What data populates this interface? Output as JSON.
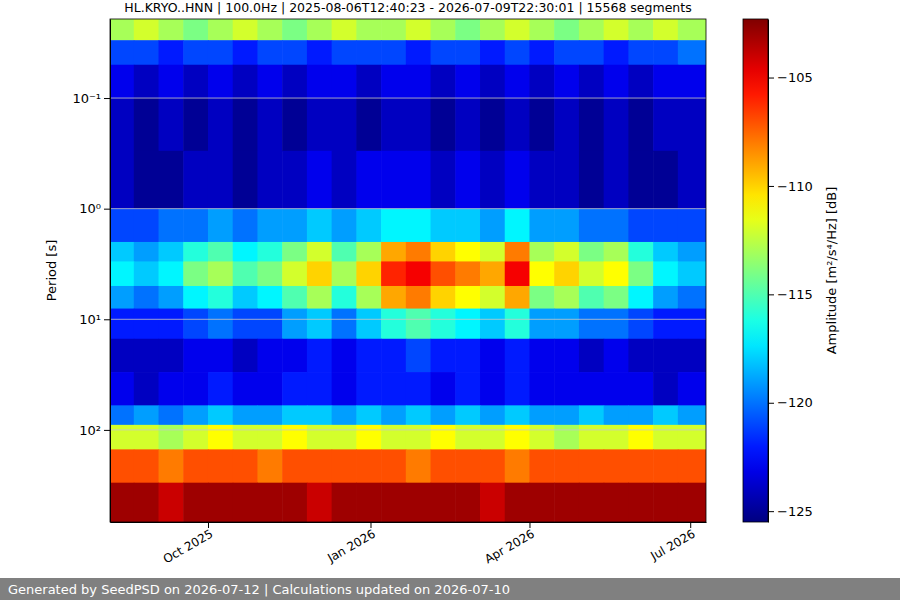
{
  "chart_data": {
    "type": "heatmap",
    "title": "HL.KRYO..HNN | 100.0Hz | 2025-08-06T12:40:23 - 2026-07-09T22:30:01 | 15568 segments",
    "y_label": "Period [s]",
    "caption": "Generated by SeedPSD on 2026-07-12 | Calculations updated on 2026-07-10",
    "log": "y",
    "grid": true,
    "xlim": [
      "2025-08-06T12:40:23",
      "2026-07-09T22:30:01"
    ],
    "xticks": [
      {
        "value": "2025-10-01",
        "label": "Oct 2025"
      },
      {
        "value": "2026-01-01",
        "label": "Jan 2026"
      },
      {
        "value": "2026-04-01",
        "label": "Apr 2026"
      },
      {
        "value": "2026-07-01",
        "label": "Jul 2026"
      }
    ],
    "ylim": [
      0.0193,
      680
    ],
    "yticks": [
      {
        "value": 0.1,
        "label": "10⁻¹"
      },
      {
        "value": 1,
        "label": "10⁰"
      },
      {
        "value": 10,
        "label": "10¹"
      },
      {
        "value": 100,
        "label": "10²"
      }
    ],
    "x_edges": [
      "2025-08-06T12:40:23",
      "2025-08-20",
      "2025-09-03",
      "2025-09-17",
      "2025-10-01",
      "2025-10-15",
      "2025-10-29",
      "2025-11-12",
      "2025-11-26",
      "2025-12-10",
      "2025-12-24",
      "2026-01-07",
      "2026-01-21",
      "2026-02-04",
      "2026-02-18",
      "2026-03-04",
      "2026-03-18",
      "2026-04-01",
      "2026-04-15",
      "2026-04-29",
      "2026-05-13",
      "2026-05-27",
      "2026-06-10",
      "2026-06-24",
      "2026-07-09T22:30:01"
    ],
    "y_edges": [
      0.0193,
      0.03,
      0.05,
      0.1,
      0.3,
      1,
      2,
      3,
      5,
      8,
      15,
      30,
      60,
      90,
      150,
      300,
      680
    ],
    "values": [
      [
        -113,
        -112,
        -113,
        -114,
        -113,
        -112,
        -113,
        -114,
        -113,
        -112,
        -113,
        -113,
        -112,
        -113,
        -114,
        -113,
        -112,
        -113,
        -114,
        -113,
        -112,
        -113,
        -112,
        -113
      ],
      [
        -121,
        -121,
        -122,
        -121,
        -121,
        -122,
        -121,
        -121,
        -122,
        -121,
        -121,
        -121,
        -122,
        -121,
        -121,
        -122,
        -121,
        -122,
        -121,
        -121,
        -122,
        -121,
        -121,
        -120
      ],
      [
        -123,
        -124,
        -123,
        -124,
        -123,
        -124,
        -123,
        -124,
        -123,
        -123,
        -124,
        -123,
        -123,
        -124,
        -123,
        -124,
        -123,
        -124,
        -123,
        -124,
        -123,
        -124,
        -123,
        -123
      ],
      [
        -124,
        -125,
        -124,
        -125,
        -124,
        -125,
        -124,
        -125,
        -124,
        -124,
        -125,
        -124,
        -124,
        -125,
        -124,
        -125,
        -124,
        -125,
        -124,
        -125,
        -124,
        -125,
        -124,
        -124
      ],
      [
        -124,
        -125,
        -125,
        -124,
        -124,
        -125,
        -124,
        -124,
        -123,
        -124,
        -123,
        -123,
        -123,
        -124,
        -123,
        -124,
        -123,
        -124,
        -124,
        -125,
        -124,
        -125,
        -125,
        -124
      ],
      [
        -121,
        -121,
        -120,
        -120,
        -119,
        -120,
        -119,
        -119,
        -118,
        -119,
        -118,
        -117,
        -117,
        -118,
        -118,
        -119,
        -117,
        -119,
        -119,
        -120,
        -120,
        -121,
        -121,
        -121
      ],
      [
        -118,
        -119,
        -118,
        -116,
        -115,
        -117,
        -116,
        -114,
        -112,
        -115,
        -113,
        -109,
        -108,
        -110,
        -111,
        -112,
        -108,
        -113,
        -112,
        -114,
        -113,
        -116,
        -118,
        -119
      ],
      [
        -117,
        -118,
        -117,
        -114,
        -113,
        -115,
        -114,
        -112,
        -110,
        -113,
        -110,
        -106,
        -105,
        -107,
        -108,
        -109,
        -105,
        -111,
        -110,
        -112,
        -111,
        -114,
        -117,
        -118
      ],
      [
        -119,
        -120,
        -119,
        -117,
        -116,
        -118,
        -117,
        -115,
        -113,
        -116,
        -113,
        -109,
        -108,
        -110,
        -111,
        -112,
        -109,
        -114,
        -113,
        -115,
        -114,
        -117,
        -119,
        -120
      ],
      [
        -122,
        -122,
        -122,
        -121,
        -120,
        -121,
        -121,
        -119,
        -118,
        -120,
        -118,
        -116,
        -115,
        -116,
        -117,
        -118,
        -116,
        -119,
        -119,
        -120,
        -120,
        -121,
        -122,
        -122
      ],
      [
        -124,
        -124,
        -124,
        -123,
        -123,
        -124,
        -123,
        -123,
        -122,
        -123,
        -122,
        -122,
        -121,
        -122,
        -122,
        -123,
        -122,
        -123,
        -123,
        -124,
        -123,
        -124,
        -124,
        -124
      ],
      [
        -123,
        -124,
        -123,
        -123,
        -122,
        -123,
        -123,
        -122,
        -122,
        -123,
        -122,
        -122,
        -122,
        -123,
        -122,
        -123,
        -122,
        -123,
        -123,
        -123,
        -123,
        -123,
        -124,
        -123
      ],
      [
        -120,
        -119,
        -120,
        -119,
        -118,
        -119,
        -119,
        -118,
        -118,
        -119,
        -118,
        -119,
        -118,
        -119,
        -118,
        -119,
        -118,
        -119,
        -119,
        -118,
        -119,
        -119,
        -118,
        -119
      ],
      [
        -112,
        -112,
        -113,
        -112,
        -111,
        -112,
        -112,
        -111,
        -112,
        -112,
        -111,
        -112,
        -112,
        -111,
        -112,
        -112,
        -111,
        -112,
        -113,
        -112,
        -112,
        -111,
        -112,
        -112
      ],
      [
        -107,
        -107,
        -108,
        -107,
        -107,
        -107,
        -108,
        -107,
        -107,
        -107,
        -107,
        -107,
        -108,
        -107,
        -107,
        -107,
        -108,
        -107,
        -107,
        -107,
        -107,
        -107,
        -107,
        -107
      ],
      [
        -103,
        -103,
        -104,
        -103,
        -103,
        -103,
        -103,
        -103,
        -104,
        -103,
        -103,
        -103,
        -103,
        -103,
        -103,
        -104,
        -103,
        -103,
        -103,
        -103,
        -103,
        -103,
        -103,
        -103
      ]
    ],
    "colorbar": {
      "label": "Amplitude [m²/s⁴/Hz] [dB]",
      "range": [
        -125.5,
        -102.3
      ],
      "ticks": [
        {
          "value": -125,
          "label": "−125"
        },
        {
          "value": -120,
          "label": "−120"
        },
        {
          "value": -115,
          "label": "−115"
        },
        {
          "value": -110,
          "label": "−110"
        },
        {
          "value": -105,
          "label": "−105"
        }
      ]
    }
  }
}
